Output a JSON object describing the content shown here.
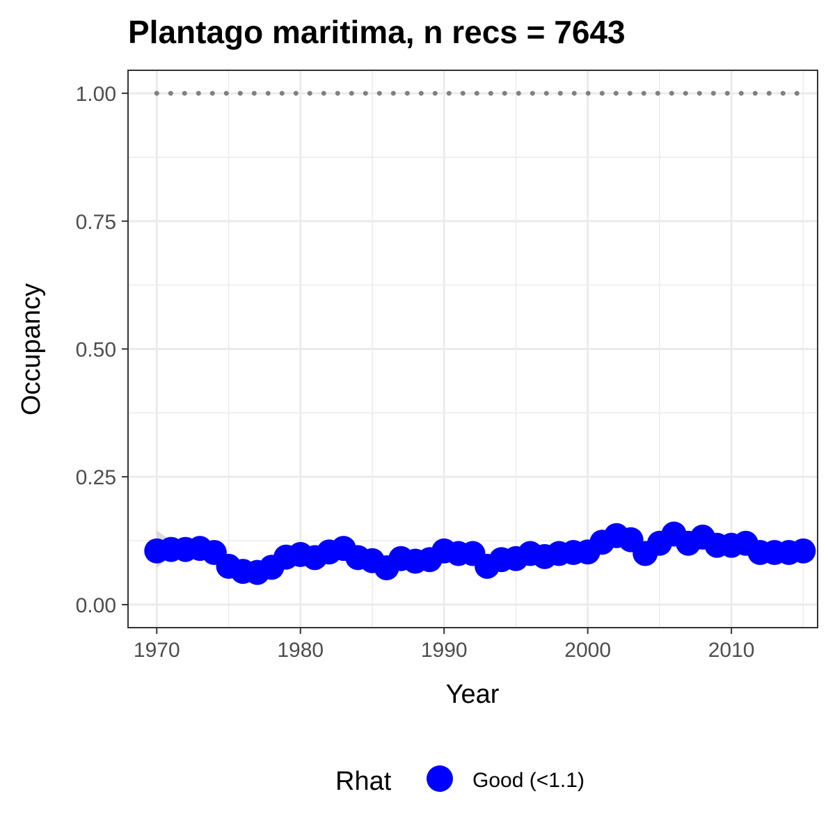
{
  "chart_data": {
    "type": "line",
    "title": "Plantago maritima, n recs = 7643",
    "xlabel": "Year",
    "ylabel": "Occupancy",
    "xlim": [
      1968,
      2016
    ],
    "ylim": [
      -0.045,
      1.045
    ],
    "x_ticks": [
      1970,
      1980,
      1990,
      2000,
      2010
    ],
    "x_tick_labels": [
      "1970",
      "1980",
      "1990",
      "2000",
      "2010"
    ],
    "y_ticks": [
      0,
      0.25,
      0.5,
      0.75,
      1
    ],
    "y_tick_labels": [
      "0.00",
      "0.25",
      "0.50",
      "0.75",
      "1.00"
    ],
    "grid": true,
    "legend": {
      "title": "Rhat",
      "position": "bottom",
      "entries": [
        {
          "label": "Good (<1.1)",
          "color": "#0000ff"
        }
      ]
    },
    "x": [
      1970,
      1971,
      1972,
      1973,
      1974,
      1975,
      1976,
      1977,
      1978,
      1979,
      1980,
      1981,
      1982,
      1983,
      1984,
      1985,
      1986,
      1987,
      1988,
      1989,
      1990,
      1991,
      1992,
      1993,
      1994,
      1995,
      1996,
      1997,
      1998,
      1999,
      2000,
      2001,
      2002,
      2003,
      2004,
      2005,
      2006,
      2007,
      2008,
      2009,
      2010,
      2011,
      2012,
      2013,
      2014,
      2015
    ],
    "series": [
      {
        "type": "points+line",
        "color": "#0000ff",
        "values": [
          0.105,
          0.108,
          0.108,
          0.11,
          0.102,
          0.075,
          0.065,
          0.063,
          0.073,
          0.093,
          0.098,
          0.092,
          0.103,
          0.11,
          0.092,
          0.086,
          0.072,
          0.09,
          0.085,
          0.088,
          0.105,
          0.1,
          0.1,
          0.075,
          0.088,
          0.09,
          0.1,
          0.094,
          0.1,
          0.102,
          0.103,
          0.122,
          0.135,
          0.127,
          0.1,
          0.12,
          0.138,
          0.12,
          0.132,
          0.116,
          0.116,
          0.12,
          0.102,
          0.102,
          0.102,
          0.105
        ]
      },
      {
        "type": "credible-interval",
        "color": "#bebebe",
        "x": [
          1970,
          1971,
          1972
        ],
        "lower": [
          0.072,
          0.095,
          0.1
        ],
        "upper": [
          0.145,
          0.125,
          0.115
        ]
      },
      {
        "type": "dotted-line",
        "color": "#808080",
        "value": 1.0
      }
    ]
  }
}
